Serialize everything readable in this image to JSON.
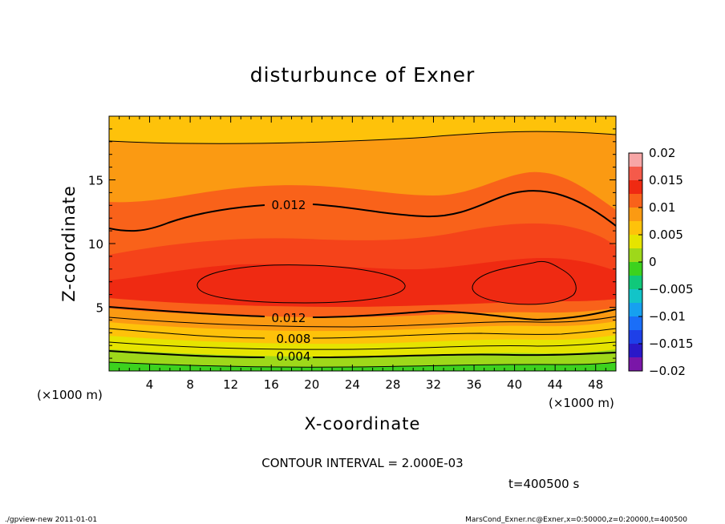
{
  "chart_data": {
    "type": "contour",
    "title": "disturbunce of Exner",
    "xlabel": "X-coordinate",
    "ylabel": "Z-coordinate",
    "x_unit": "(×1000 m)",
    "y_unit": "(×1000 m)",
    "xlim": [
      0,
      50
    ],
    "ylim": [
      0,
      20
    ],
    "xticks": [
      "4",
      "8",
      "12",
      "16",
      "20",
      "24",
      "28",
      "32",
      "36",
      "40",
      "44",
      "48"
    ],
    "yticks": [
      "5",
      "10",
      "15"
    ],
    "contour_labels": [
      "0.012",
      "0.012",
      "0.008",
      "0.004"
    ],
    "contour_interval_text": "CONTOUR INTERVAL = 2.000E-03",
    "time_text": "t=400500 s",
    "colorbar": {
      "ticks": [
        "0.02",
        "0.015",
        "0.01",
        "0.005",
        "0",
        "−0.005",
        "−0.01",
        "−0.015",
        "−0.02"
      ],
      "levels": [
        {
          "min": 0.0175,
          "max": 0.02,
          "color": "#f7a6a6"
        },
        {
          "min": 0.015,
          "max": 0.0175,
          "color": "#f55a4a"
        },
        {
          "min": 0.0125,
          "max": 0.015,
          "color": "#ef2a12"
        },
        {
          "min": 0.01,
          "max": 0.0125,
          "color": "#f9621a"
        },
        {
          "min": 0.0075,
          "max": 0.01,
          "color": "#fb9a12"
        },
        {
          "min": 0.005,
          "max": 0.0075,
          "color": "#fec20a"
        },
        {
          "min": 0.0025,
          "max": 0.005,
          "color": "#e6e400"
        },
        {
          "min": 0.0,
          "max": 0.0025,
          "color": "#9ed81a"
        },
        {
          "min": -0.0025,
          "max": 0.0,
          "color": "#3cd21e"
        },
        {
          "min": -0.005,
          "max": -0.0025,
          "color": "#10c87a"
        },
        {
          "min": -0.0075,
          "max": -0.005,
          "color": "#12c4c8"
        },
        {
          "min": -0.01,
          "max": -0.0075,
          "color": "#16a0f0"
        },
        {
          "min": -0.0125,
          "max": -0.01,
          "color": "#1a6ef8"
        },
        {
          "min": -0.015,
          "max": -0.0125,
          "color": "#1e40e8"
        },
        {
          "min": -0.0175,
          "max": -0.015,
          "color": "#2a18c8"
        },
        {
          "min": -0.02,
          "max": -0.0175,
          "color": "#7a16a8"
        }
      ]
    }
  },
  "footer": {
    "left": "./gpview-new  2011-01-01",
    "right": "MarsCond_Exner.nc@Exner,x=0:50000,z=0:20000,t=400500"
  }
}
